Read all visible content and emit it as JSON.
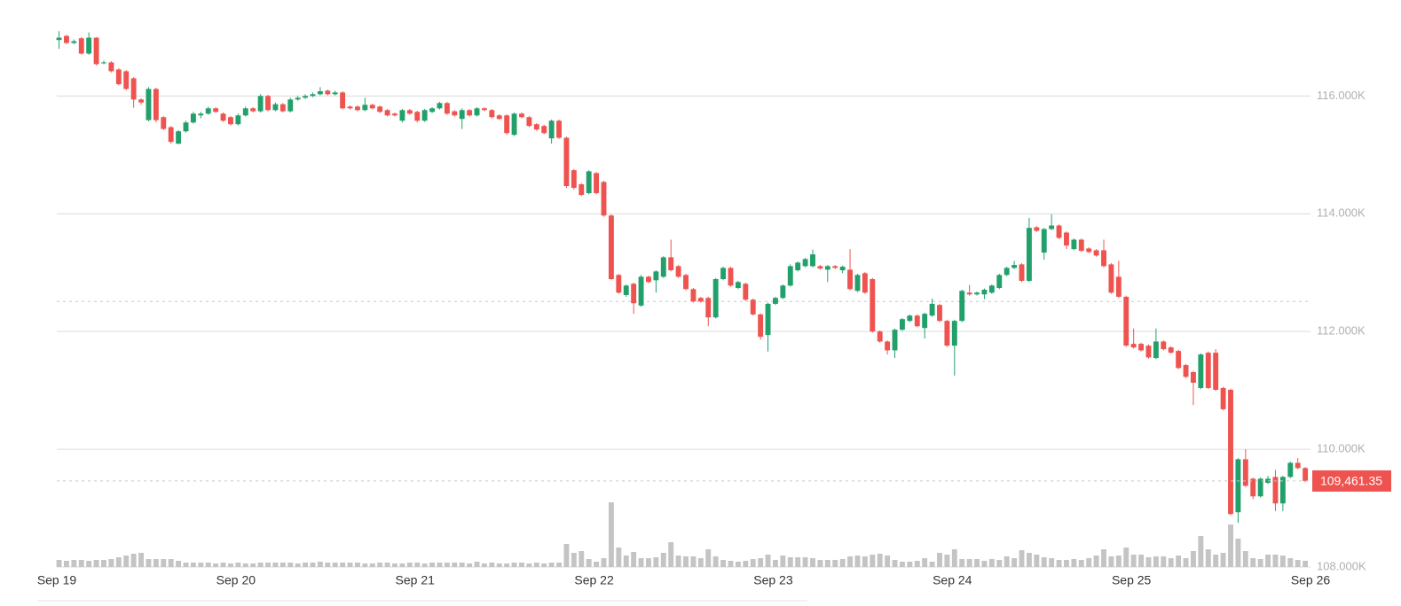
{
  "chart_data": {
    "type": "candlestick",
    "x": [
      0,
      1,
      2,
      3,
      4,
      5,
      6,
      7,
      8,
      9,
      10,
      11,
      12,
      13,
      14,
      15,
      16,
      17,
      18,
      19,
      20,
      21,
      22,
      23,
      24,
      25,
      26,
      27,
      28,
      29,
      30,
      31,
      32,
      33,
      34,
      35,
      36,
      37,
      38,
      39,
      40,
      41,
      42,
      43,
      44,
      45,
      46,
      47,
      48,
      49,
      50,
      51,
      52,
      53,
      54,
      55,
      56,
      57,
      58,
      59,
      60,
      61,
      62,
      63,
      64,
      65,
      66,
      67,
      68,
      69,
      70,
      71,
      72,
      73,
      74,
      75,
      76,
      77,
      78,
      79,
      80,
      81,
      82,
      83,
      84,
      85,
      86,
      87,
      88,
      89,
      90,
      91,
      92,
      93,
      94,
      95,
      96,
      97,
      98,
      99,
      100,
      101,
      102,
      103,
      104,
      105,
      106,
      107,
      108,
      109,
      110,
      111,
      112,
      113,
      114,
      115,
      116,
      117,
      118,
      119,
      120,
      121,
      122,
      123,
      124,
      125,
      126,
      127,
      128,
      129,
      130,
      131,
      132,
      133,
      134,
      135,
      136,
      137,
      138,
      139,
      140,
      141,
      142,
      143,
      144,
      145,
      146,
      147,
      148,
      149,
      150,
      151,
      152,
      153,
      154,
      155,
      156,
      157,
      158,
      159,
      160,
      161,
      162,
      163,
      164,
      165,
      166,
      167
    ],
    "open": [
      116950,
      117020,
      116900,
      116980,
      116720,
      116990,
      116570,
      116570,
      116450,
      116420,
      116300,
      115940,
      115590,
      116120,
      115640,
      115470,
      115190,
      115400,
      115550,
      115670,
      115700,
      115790,
      115700,
      115640,
      115520,
      115670,
      115790,
      115740,
      116000,
      115760,
      115860,
      115740,
      115940,
      115970,
      116000,
      116030,
      116090,
      116030,
      116060,
      115820,
      115820,
      115760,
      115850,
      115820,
      115760,
      115700,
      115580,
      115760,
      115730,
      115580,
      115730,
      115790,
      115880,
      115740,
      115610,
      115760,
      115670,
      115790,
      115760,
      115670,
      115670,
      115340,
      115700,
      115640,
      115520,
      115490,
      115280,
      115580,
      115290,
      114740,
      114500,
      114350,
      114690,
      114540,
      113970,
      112960,
      112620,
      112810,
      112440,
      112930,
      112870,
      112930,
      113260,
      113110,
      112960,
      112720,
      112570,
      112570,
      112240,
      112890,
      113080,
      112740,
      112810,
      112540,
      112290,
      111940,
      112470,
      112570,
      112780,
      113040,
      113110,
      113110,
      113110,
      113050,
      113110,
      113040,
      113050,
      112690,
      112990,
      112890,
      112000,
      111830,
      111680,
      112030,
      112180,
      112270,
      112060,
      112270,
      112450,
      112180,
      111760,
      112180,
      112660,
      112630,
      112630,
      112660,
      112740,
      112960,
      113080,
      113140,
      112860,
      113770,
      113340,
      113740,
      113800,
      113680,
      113400,
      113560,
      113410,
      113380,
      113380,
      113140,
      112930,
      112590,
      111790,
      111790,
      111760,
      111550,
      111830,
      111730,
      111670,
      111430,
      111310,
      111040,
      111640,
      111640,
      111040,
      111010,
      108930,
      109830,
      109500,
      109200,
      109430,
      109530,
      109080,
      109530,
      109770,
      109680
    ],
    "high": [
      117100,
      117040,
      116960,
      117000,
      117080,
      117000,
      116600,
      116590,
      116470,
      116440,
      116320,
      115960,
      116150,
      116140,
      115660,
      115490,
      115420,
      115580,
      115730,
      115730,
      115820,
      115810,
      115720,
      115660,
      115700,
      115820,
      115810,
      116030,
      116020,
      115890,
      115880,
      115970,
      116000,
      116030,
      116060,
      116150,
      116110,
      116090,
      116080,
      115840,
      115840,
      115970,
      115870,
      115840,
      115780,
      115720,
      115780,
      115780,
      115750,
      115780,
      115810,
      115900,
      115900,
      115760,
      115790,
      115780,
      115810,
      115810,
      115780,
      115690,
      115690,
      115720,
      115720,
      115660,
      115540,
      115510,
      115600,
      115600,
      115310,
      114760,
      114520,
      114740,
      114710,
      114560,
      113990,
      112980,
      112800,
      112830,
      112960,
      112950,
      113040,
      113280,
      113560,
      113130,
      112980,
      112740,
      112590,
      112590,
      112910,
      113100,
      113100,
      112860,
      112830,
      112560,
      112310,
      112490,
      112590,
      112800,
      113140,
      113190,
      113250,
      113390,
      113130,
      113130,
      113130,
      113120,
      113400,
      112980,
      113010,
      112910,
      112020,
      111850,
      112050,
      112230,
      112290,
      112290,
      112320,
      112560,
      112470,
      112200,
      112200,
      112710,
      112790,
      112680,
      112730,
      112800,
      112980,
      113100,
      113200,
      113160,
      113930,
      113790,
      113760,
      113990,
      113820,
      113700,
      113580,
      113580,
      113430,
      113400,
      113560,
      113160,
      113200,
      112610,
      112050,
      111810,
      111780,
      112050,
      111850,
      111750,
      111690,
      111450,
      111330,
      111630,
      111660,
      111700,
      111060,
      111030,
      109850,
      110000,
      109520,
      109520,
      109550,
      109650,
      109550,
      109790,
      109850,
      109700
    ],
    "low": [
      116800,
      116880,
      116880,
      116700,
      116700,
      116520,
      116540,
      116400,
      116180,
      116100,
      115800,
      115850,
      115570,
      115550,
      115420,
      115190,
      115180,
      115380,
      115530,
      115620,
      115680,
      115710,
      115560,
      115500,
      115500,
      115650,
      115720,
      115720,
      115740,
      115740,
      115720,
      115720,
      115920,
      115950,
      115980,
      116010,
      116010,
      116010,
      115770,
      115770,
      115740,
      115740,
      115770,
      115710,
      115650,
      115650,
      115550,
      115680,
      115550,
      115560,
      115710,
      115770,
      115680,
      115650,
      115440,
      115650,
      115650,
      115740,
      115620,
      115590,
      115340,
      115320,
      115620,
      115470,
      115410,
      115350,
      115190,
      115270,
      114440,
      114410,
      114300,
      114330,
      114330,
      113950,
      112870,
      112640,
      112590,
      112300,
      112420,
      112820,
      112660,
      112910,
      113020,
      112910,
      112700,
      112490,
      112490,
      112090,
      112220,
      112870,
      112760,
      112720,
      112520,
      112270,
      111860,
      111660,
      112450,
      112550,
      112760,
      113020,
      113090,
      113090,
      113050,
      112840,
      113060,
      112990,
      112700,
      112670,
      112640,
      111980,
      111810,
      111610,
      111550,
      112010,
      112160,
      112070,
      111880,
      112250,
      112160,
      111740,
      111250,
      112160,
      112610,
      112610,
      112550,
      112640,
      112720,
      112940,
      113060,
      112840,
      112840,
      113690,
      113220,
      113720,
      113570,
      113400,
      113380,
      113350,
      113330,
      113270,
      113090,
      112640,
      112570,
      111740,
      111710,
      111660,
      111540,
      111530,
      111680,
      111620,
      111360,
      111210,
      110750,
      111020,
      111020,
      110990,
      110660,
      108880,
      108750,
      109360,
      109150,
      109180,
      109410,
      108950,
      108950,
      109510,
      109660,
      109440
    ],
    "close": [
      116990,
      116900,
      116930,
      116720,
      116990,
      116540,
      116570,
      116420,
      116200,
      116120,
      115940,
      115890,
      116120,
      115590,
      115440,
      115220,
      115400,
      115550,
      115700,
      115700,
      115790,
      115730,
      115580,
      115520,
      115670,
      115790,
      115740,
      116000,
      115760,
      115860,
      115740,
      115940,
      115970,
      116000,
      116030,
      116080,
      116030,
      116060,
      115790,
      115790,
      115760,
      115850,
      115790,
      115730,
      115670,
      115670,
      115760,
      115700,
      115580,
      115760,
      115790,
      115880,
      115700,
      115670,
      115760,
      115670,
      115790,
      115760,
      115640,
      115610,
      115370,
      115700,
      115640,
      115490,
      115430,
      115370,
      115580,
      115290,
      114470,
      114440,
      114320,
      114720,
      114350,
      113970,
      112890,
      112660,
      112780,
      112480,
      112930,
      112840,
      113020,
      113260,
      113040,
      112930,
      112720,
      112510,
      112510,
      112240,
      112890,
      113080,
      112780,
      112840,
      112540,
      112290,
      111910,
      112470,
      112570,
      112780,
      113110,
      113170,
      113230,
      113310,
      113070,
      113110,
      113080,
      113100,
      112720,
      112960,
      112660,
      112000,
      111830,
      111680,
      112030,
      112210,
      112270,
      112090,
      112300,
      112470,
      112180,
      111760,
      112180,
      112690,
      112630,
      112660,
      112710,
      112780,
      112960,
      113080,
      113130,
      112860,
      113760,
      113710,
      113740,
      113800,
      113590,
      113460,
      113560,
      113370,
      113350,
      113290,
      113110,
      112660,
      112590,
      111760,
      111730,
      111680,
      111560,
      111830,
      111700,
      111640,
      111380,
      111230,
      111130,
      111610,
      111040,
      111010,
      110680,
      108900,
      109830,
      109380,
      109200,
      109500,
      109500,
      109080,
      109530,
      109770,
      109680,
      109461.35
    ],
    "volume": [
      8,
      7,
      8,
      8,
      7,
      8,
      8,
      9,
      11,
      13,
      15,
      16,
      9,
      9,
      9,
      9,
      7,
      5,
      5,
      5,
      5,
      4,
      5,
      4,
      5,
      4,
      4,
      5,
      5,
      5,
      5,
      5,
      4,
      5,
      5,
      6,
      5,
      5,
      5,
      5,
      5,
      4,
      4,
      5,
      5,
      4,
      4,
      5,
      5,
      4,
      5,
      5,
      5,
      5,
      5,
      4,
      6,
      4,
      5,
      4,
      4,
      5,
      5,
      4,
      5,
      4,
      5,
      5,
      26,
      16,
      18,
      9,
      6,
      10,
      73,
      22,
      13,
      17,
      10,
      10,
      11,
      16,
      28,
      13,
      12,
      12,
      10,
      20,
      12,
      8,
      7,
      6,
      7,
      9,
      10,
      14,
      8,
      13,
      11,
      11,
      11,
      10,
      8,
      8,
      8,
      9,
      12,
      13,
      12,
      14,
      15,
      13,
      8,
      6,
      6,
      7,
      10,
      6,
      16,
      14,
      20,
      9,
      9,
      9,
      7,
      9,
      8,
      12,
      10,
      19,
      16,
      14,
      11,
      10,
      8,
      8,
      9,
      8,
      10,
      13,
      20,
      12,
      13,
      22,
      14,
      14,
      11,
      12,
      12,
      10,
      13,
      10,
      18,
      35,
      20,
      14,
      16,
      48,
      32,
      18,
      10,
      9,
      14,
      14,
      13,
      10,
      8,
      7
    ],
    "up_color": "#22a06b",
    "down_color": "#ef5350",
    "volume_color": "#c4c4c4",
    "xlim": [
      0,
      168
    ],
    "xticks": [
      {
        "value": 0,
        "label": "Sep 19"
      },
      {
        "value": 24,
        "label": "Sep 20"
      },
      {
        "value": 48,
        "label": "Sep 21"
      },
      {
        "value": 72,
        "label": "Sep 22"
      },
      {
        "value": 96,
        "label": "Sep 23"
      },
      {
        "value": 120,
        "label": "Sep 24"
      },
      {
        "value": 144,
        "label": "Sep 25"
      },
      {
        "value": 168,
        "label": "Sep 26"
      }
    ],
    "ylim": [
      108000,
      117600
    ],
    "yticks": [
      {
        "value": 108000,
        "label": "108.000K"
      },
      {
        "value": 110000,
        "label": "110.000K"
      },
      {
        "value": 112000,
        "label": "112.000K"
      },
      {
        "value": 114000,
        "label": "114.000K"
      },
      {
        "value": 116000,
        "label": "116.000K"
      }
    ],
    "volume_lim": [
      0,
      80
    ],
    "grid": true,
    "reference_line": 112510,
    "last_price": {
      "value": 109461.35,
      "label": "109,461.35"
    }
  }
}
